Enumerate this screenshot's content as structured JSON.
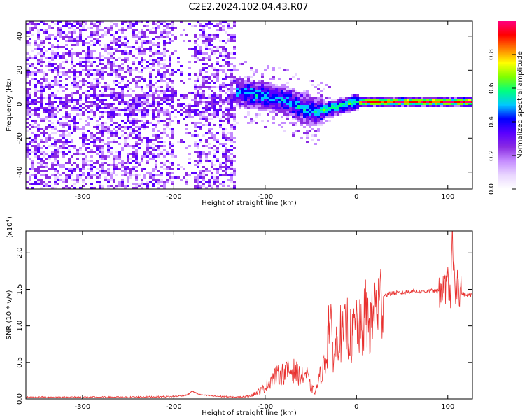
{
  "title": "C2E2.2024.102.04.43.R07",
  "colors": {
    "snr_line": "#e8312f",
    "axis": "#000000",
    "colormap": [
      "#ffffff",
      "#e9d6ff",
      "#c58cff",
      "#8a2be2",
      "#5a00ff",
      "#0000ff",
      "#00c8ff",
      "#00ff80",
      "#7fff00",
      "#ffff00",
      "#ff8000",
      "#ff0000",
      "#ff0080"
    ]
  },
  "chart_data": [
    {
      "type": "heatmap",
      "xlabel": "Height of straight line (km)",
      "ylabel": "Frequency (Hz)",
      "xlim": [
        -362,
        127
      ],
      "ylim": [
        -50,
        49
      ],
      "xticks": [
        -300,
        -200,
        -100,
        0,
        100
      ],
      "yticks": [
        -40,
        -20,
        0,
        20,
        40
      ],
      "colorbar": {
        "label": "Normalized spectral amplitude",
        "range": [
          0,
          1
        ],
        "ticks": [
          "0.0",
          "0.2",
          "0.4",
          "0.6",
          "0.8"
        ],
        "tick_values": [
          0,
          0.2,
          0.4,
          0.6,
          0.8
        ]
      },
      "ridge_center_hz": [
        [
          -135,
          8
        ],
        [
          -110,
          6
        ],
        [
          -80,
          3
        ],
        [
          -60,
          -2
        ],
        [
          -45,
          -4
        ],
        [
          -30,
          -2
        ],
        [
          -15,
          0
        ],
        [
          0,
          2
        ],
        [
          30,
          2
        ],
        [
          60,
          2
        ],
        [
          90,
          2
        ],
        [
          110,
          2
        ],
        [
          127,
          2
        ]
      ]
    },
    {
      "type": "line",
      "exponent_label": "(x10",
      "exponent_power": "4",
      "exponent_close": ")",
      "xlabel": "Height of straight line (km)",
      "ylabel": "SNR (10 * v/v)",
      "xlim": [
        -362,
        127
      ],
      "ylim": [
        0,
        2.3
      ],
      "xticks": [
        -300,
        -200,
        -100,
        0,
        100
      ],
      "yticks": [
        0.0,
        0.5,
        1.0,
        1.5,
        2.0
      ],
      "ytick_labels": [
        "0.0",
        "0.5",
        "1.0",
        "1.5",
        "2.0"
      ],
      "series": [
        {
          "x": [
            -362,
            -300,
            -250,
            -200,
            -185,
            -180,
            -170,
            -150,
            -130,
            -120,
            -110,
            -100,
            -95,
            -90,
            -80,
            -70,
            -60,
            -55,
            -50,
            -45,
            -40,
            -35,
            -32,
            -30,
            -28,
            -25,
            -22,
            -20,
            -15,
            -10,
            -5,
            0,
            5,
            10,
            15,
            20,
            25,
            30,
            40,
            50,
            60,
            70,
            80,
            90,
            95,
            100,
            103,
            105,
            108,
            110,
            115,
            120,
            127
          ],
          "y": [
            0.02,
            0.02,
            0.02,
            0.03,
            0.05,
            0.1,
            0.05,
            0.03,
            0.02,
            0.03,
            0.08,
            0.15,
            0.25,
            0.3,
            0.35,
            0.4,
            0.3,
            0.35,
            0.15,
            0.1,
            0.3,
            0.5,
            0.7,
            1.2,
            0.9,
            0.6,
            0.75,
            0.95,
            0.85,
            1.0,
            0.8,
            1.05,
            0.9,
            1.15,
            1.0,
            1.25,
            1.3,
            1.42,
            1.45,
            1.45,
            1.48,
            1.47,
            1.48,
            1.47,
            1.5,
            1.6,
            1.45,
            2.2,
            1.3,
            1.6,
            1.45,
            1.42,
            1.42
          ]
        }
      ]
    }
  ]
}
